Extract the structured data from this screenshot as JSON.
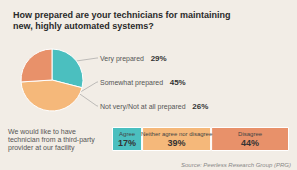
{
  "chart_data": [
    {
      "type": "pie",
      "title": "How prepared are your technicians for maintaining\nnew, highly automated systems?",
      "categories": [
        "Very prepared",
        "Somewhat prepared",
        "Not very/Not at all prepared"
      ],
      "values": [
        29,
        45,
        26
      ],
      "value_labels": [
        "29%",
        "45%",
        "26%"
      ],
      "colors": [
        "#4BBFBF",
        "#F5B87A",
        "#E8916A"
      ],
      "data_labels": true
    },
    {
      "type": "bar",
      "orientation": "horizontal",
      "stacked": true,
      "categories": [
        "We would like to have\ntechnician from a third-party\nprovider at our facility"
      ],
      "series": [
        {
          "name": "Agree",
          "color": "#4BBFBF",
          "values": [
            17
          ],
          "value_labels": [
            "17%"
          ]
        },
        {
          "name": "Neither agree nor disagree",
          "color": "#F5B87A",
          "values": [
            39
          ],
          "value_labels": [
            "39%"
          ]
        },
        {
          "name": "Disagree",
          "color": "#E8916A",
          "values": [
            44
          ],
          "value_labels": [
            "44%"
          ]
        }
      ],
      "xlim": [
        0,
        100
      ],
      "data_labels": true,
      "tick_labels": "y",
      "annotations": [
        "Source: Peerless Research Group (PRG)"
      ]
    }
  ]
}
